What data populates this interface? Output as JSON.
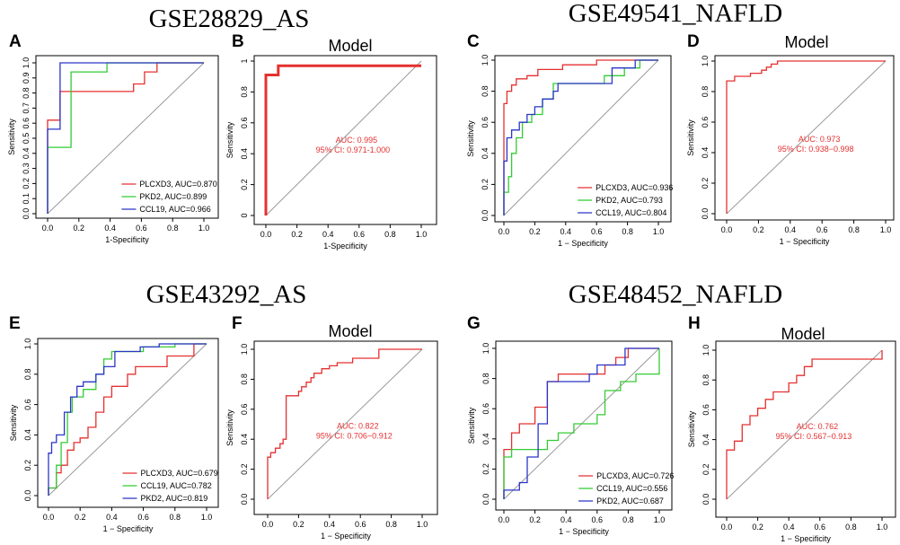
{
  "colors": {
    "red": "#e53030",
    "green": "#33cc33",
    "blue": "#2a36c8",
    "diagonal": "#9a9a9a"
  },
  "group_titles": [
    "GSE28829_AS",
    "GSE49541_NAFLD",
    "GSE43292_AS",
    "GSE48452_NAFLD"
  ],
  "chart_data": [
    {
      "panel": "A",
      "type": "line",
      "title": "",
      "xlabel": "1-Specificity",
      "ylabel": "Sensitivity",
      "xlim": [
        0,
        1
      ],
      "ylim": [
        0,
        1
      ],
      "xticks": [
        "0.0",
        "0.2",
        "0.4",
        "0.6",
        "0.8",
        "1.0"
      ],
      "yticks": [
        "0.0",
        "0.1",
        "0.2",
        "0.3",
        "0.4",
        "0.5",
        "0.6",
        "0.7",
        "0.8",
        "0.9",
        "1.0"
      ],
      "legend": "bottom-right",
      "series": [
        {
          "name": "PLCXD3, AUC=0.870",
          "color": "red",
          "x": [
            0,
            0,
            0.08,
            0.08,
            0.55,
            0.55,
            0.62,
            0.62,
            0.7,
            0.7,
            1.0
          ],
          "y": [
            0,
            0.62,
            0.62,
            0.81,
            0.81,
            0.86,
            0.86,
            0.94,
            0.94,
            1.0,
            1.0
          ]
        },
        {
          "name": "PKD2, AUC=0.899",
          "color": "green",
          "x": [
            0,
            0,
            0.15,
            0.15,
            0.38,
            0.38,
            1.0
          ],
          "y": [
            0,
            0.44,
            0.44,
            0.94,
            0.94,
            1.0,
            1.0
          ]
        },
        {
          "name": "CCL19, AUC=0.966",
          "color": "blue",
          "x": [
            0,
            0,
            0.08,
            0.08,
            1.0
          ],
          "y": [
            0,
            0.56,
            0.56,
            1.0,
            1.0
          ]
        }
      ]
    },
    {
      "panel": "B",
      "type": "line",
      "title": "Model",
      "xlabel": "1-Specificity",
      "ylabel": "Sensitivity",
      "xlim": [
        0,
        1
      ],
      "ylim": [
        0,
        1
      ],
      "xticks": [
        "0.0",
        "0.2",
        "0.4",
        "0.6",
        "0.8",
        "1.0"
      ],
      "yticks": [
        "0",
        "0.2",
        "0.4",
        "0.6",
        "0.8",
        "1"
      ],
      "auc_text": "AUC: 0.995",
      "ci_text": "95% CI: 0.971-1.000",
      "series": [
        {
          "name": "Model",
          "color": "red",
          "thick": true,
          "x": [
            0,
            0,
            0.08,
            0.08,
            1.0
          ],
          "y": [
            0,
            0.91,
            0.91,
            0.97,
            0.97
          ]
        }
      ]
    },
    {
      "panel": "C",
      "type": "line",
      "title": "",
      "xlabel": "1 − Specificity",
      "ylabel": "Sensitivity",
      "xlim": [
        0,
        1
      ],
      "ylim": [
        0,
        1
      ],
      "xticks": [
        "0.0",
        "0.2",
        "0.4",
        "0.6",
        "0.8",
        "1.0"
      ],
      "yticks": [
        "0.0",
        "0.2",
        "0.4",
        "0.6",
        "0.8",
        "1.0"
      ],
      "legend": "bottom-right",
      "series": [
        {
          "name": "PLCXD3, AUC=0.936",
          "color": "red",
          "x": [
            0,
            0,
            0.02,
            0.02,
            0.05,
            0.05,
            0.08,
            0.08,
            0.15,
            0.15,
            0.22,
            0.22,
            0.38,
            0.38,
            0.6,
            0.6,
            1.0
          ],
          "y": [
            0,
            0.72,
            0.72,
            0.8,
            0.8,
            0.84,
            0.84,
            0.88,
            0.88,
            0.9,
            0.9,
            0.94,
            0.94,
            0.97,
            0.97,
            1.0,
            1.0
          ]
        },
        {
          "name": "PKD2, AUC=0.793",
          "color": "green",
          "x": [
            0,
            0,
            0.03,
            0.03,
            0.05,
            0.05,
            0.08,
            0.08,
            0.12,
            0.12,
            0.18,
            0.18,
            0.25,
            0.25,
            0.32,
            0.32,
            0.65,
            0.65,
            0.78,
            0.78,
            0.88,
            0.88,
            1.0
          ],
          "y": [
            0,
            0.15,
            0.15,
            0.25,
            0.25,
            0.4,
            0.4,
            0.5,
            0.5,
            0.6,
            0.6,
            0.65,
            0.65,
            0.75,
            0.75,
            0.85,
            0.85,
            0.9,
            0.9,
            0.95,
            0.95,
            1.0,
            1.0
          ]
        },
        {
          "name": "CCL19, AUC=0.804",
          "color": "blue",
          "x": [
            0,
            0,
            0.02,
            0.02,
            0.05,
            0.05,
            0.1,
            0.1,
            0.15,
            0.15,
            0.2,
            0.2,
            0.25,
            0.25,
            0.32,
            0.32,
            0.35,
            0.35,
            0.7,
            0.7,
            0.85,
            0.85,
            1.0
          ],
          "y": [
            0,
            0.35,
            0.35,
            0.5,
            0.5,
            0.55,
            0.55,
            0.6,
            0.6,
            0.65,
            0.65,
            0.7,
            0.7,
            0.75,
            0.75,
            0.8,
            0.8,
            0.85,
            0.85,
            0.95,
            0.95,
            1.0,
            1.0
          ]
        }
      ]
    },
    {
      "panel": "D",
      "type": "line",
      "title": "Model",
      "xlabel": "1 − Specificity",
      "ylabel": "Sensitivity",
      "xlim": [
        0,
        1
      ],
      "ylim": [
        0,
        1
      ],
      "xticks": [
        "0.0",
        "0.2",
        "0.4",
        "0.6",
        "0.8",
        "1.0"
      ],
      "yticks": [
        "0.0",
        "0.2",
        "0.4",
        "0.6",
        "0.8",
        "1.0"
      ],
      "auc_text": "AUC: 0.973",
      "ci_text": "95% CI: 0.938−0.998",
      "series": [
        {
          "name": "Model",
          "color": "red",
          "x": [
            0,
            0,
            0.05,
            0.05,
            0.15,
            0.15,
            0.22,
            0.22,
            0.25,
            0.25,
            0.28,
            0.28,
            0.32,
            0.32,
            1.0
          ],
          "y": [
            0,
            0.87,
            0.87,
            0.9,
            0.9,
            0.92,
            0.92,
            0.94,
            0.94,
            0.96,
            0.96,
            0.98,
            0.98,
            1.0,
            1.0
          ]
        }
      ]
    },
    {
      "panel": "E",
      "type": "line",
      "title": "",
      "xlabel": "1 − Specificity",
      "ylabel": "Sensitivity",
      "xlim": [
        0,
        1
      ],
      "ylim": [
        0,
        1
      ],
      "xticks": [
        "0.0",
        "0.2",
        "0.4",
        "0.6",
        "0.8",
        "1.0"
      ],
      "yticks": [
        "0.0",
        "0.2",
        "0.4",
        "0.6",
        "0.8",
        "1.0"
      ],
      "legend": "bottom-right",
      "series": [
        {
          "name": "PLCXD3, AUC=0.679",
          "color": "red",
          "x": [
            0,
            0,
            0.05,
            0.05,
            0.08,
            0.08,
            0.12,
            0.12,
            0.16,
            0.16,
            0.2,
            0.2,
            0.25,
            0.25,
            0.3,
            0.3,
            0.35,
            0.35,
            0.4,
            0.4,
            0.5,
            0.5,
            0.55,
            0.55,
            0.75,
            0.75,
            0.92,
            0.92,
            1.0
          ],
          "y": [
            0,
            0.05,
            0.05,
            0.15,
            0.15,
            0.2,
            0.2,
            0.3,
            0.3,
            0.35,
            0.35,
            0.38,
            0.38,
            0.45,
            0.45,
            0.55,
            0.55,
            0.65,
            0.65,
            0.72,
            0.72,
            0.8,
            0.8,
            0.85,
            0.85,
            0.92,
            0.92,
            1.0,
            1.0
          ]
        },
        {
          "name": "CCL19, AUC=0.782",
          "color": "green",
          "x": [
            0,
            0,
            0.05,
            0.05,
            0.08,
            0.08,
            0.12,
            0.12,
            0.15,
            0.15,
            0.22,
            0.22,
            0.3,
            0.3,
            0.35,
            0.35,
            0.4,
            0.4,
            0.6,
            0.6,
            0.8,
            0.8,
            1.0
          ],
          "y": [
            0,
            0.05,
            0.05,
            0.2,
            0.2,
            0.35,
            0.35,
            0.55,
            0.55,
            0.65,
            0.65,
            0.7,
            0.7,
            0.8,
            0.8,
            0.9,
            0.9,
            0.95,
            0.95,
            0.98,
            0.98,
            1.0,
            1.0
          ]
        },
        {
          "name": "PKD2, AUC=0.819",
          "color": "blue",
          "x": [
            0,
            0,
            0.02,
            0.02,
            0.05,
            0.05,
            0.1,
            0.1,
            0.14,
            0.14,
            0.18,
            0.18,
            0.22,
            0.22,
            0.3,
            0.3,
            0.35,
            0.35,
            0.42,
            0.42,
            0.58,
            0.58,
            0.7,
            0.7,
            1.0
          ],
          "y": [
            0,
            0.28,
            0.28,
            0.35,
            0.35,
            0.4,
            0.4,
            0.55,
            0.55,
            0.65,
            0.65,
            0.72,
            0.72,
            0.75,
            0.75,
            0.8,
            0.8,
            0.85,
            0.85,
            0.95,
            0.95,
            0.98,
            0.98,
            1.0,
            1.0
          ]
        }
      ]
    },
    {
      "panel": "F",
      "type": "line",
      "title": "Model",
      "xlabel": "1 − Specificity",
      "ylabel": "Sensitivity",
      "xlim": [
        0,
        1
      ],
      "ylim": [
        0,
        1
      ],
      "xticks": [
        "0.0",
        "0.2",
        "0.4",
        "0.6",
        "0.8",
        "1.0"
      ],
      "yticks": [
        "0.0",
        "0.2",
        "0.4",
        "0.6",
        "0.8",
        "1.0"
      ],
      "auc_text": "AUC: 0.822",
      "ci_text": "95% CI: 0.706−0.912",
      "series": [
        {
          "name": "Model",
          "color": "red",
          "x": [
            0,
            0,
            0.02,
            0.02,
            0.05,
            0.05,
            0.08,
            0.08,
            0.1,
            0.1,
            0.12,
            0.12,
            0.2,
            0.2,
            0.22,
            0.22,
            0.25,
            0.25,
            0.28,
            0.28,
            0.3,
            0.3,
            0.35,
            0.35,
            0.4,
            0.4,
            0.45,
            0.45,
            0.55,
            0.55,
            0.72,
            0.72,
            1.0
          ],
          "y": [
            0,
            0.28,
            0.28,
            0.31,
            0.31,
            0.34,
            0.34,
            0.37,
            0.37,
            0.4,
            0.4,
            0.69,
            0.69,
            0.72,
            0.72,
            0.75,
            0.75,
            0.78,
            0.78,
            0.81,
            0.81,
            0.84,
            0.84,
            0.87,
            0.87,
            0.89,
            0.89,
            0.91,
            0.91,
            0.94,
            0.94,
            1.0,
            1.0
          ]
        }
      ]
    },
    {
      "panel": "G",
      "type": "line",
      "title": "",
      "xlabel": "1 − Specificity",
      "ylabel": "Sensitivity",
      "xlim": [
        0,
        1
      ],
      "ylim": [
        0,
        1
      ],
      "xticks": [
        "0.0",
        "0.2",
        "0.4",
        "0.6",
        "0.8",
        "1.0"
      ],
      "yticks": [
        "0.0",
        "0.2",
        "0.4",
        "0.6",
        "0.8",
        "1.0"
      ],
      "legend": "bottom-right",
      "series": [
        {
          "name": "PLCXD3, AUC=0.726",
          "color": "red",
          "x": [
            0,
            0,
            0.05,
            0.05,
            0.1,
            0.1,
            0.2,
            0.2,
            0.28,
            0.28,
            0.35,
            0.35,
            0.65,
            0.65,
            0.72,
            0.72,
            0.8,
            0.8,
            1.0
          ],
          "y": [
            0,
            0.33,
            0.33,
            0.44,
            0.44,
            0.5,
            0.5,
            0.61,
            0.61,
            0.78,
            0.78,
            0.83,
            0.83,
            0.89,
            0.89,
            0.94,
            0.94,
            1.0,
            1.0
          ]
        },
        {
          "name": "CCL19, AUC=0.556",
          "color": "green",
          "x": [
            0,
            0,
            0.05,
            0.05,
            0.28,
            0.28,
            0.35,
            0.35,
            0.45,
            0.45,
            0.6,
            0.6,
            0.65,
            0.65,
            0.75,
            0.75,
            0.85,
            0.85,
            1.0,
            1.0
          ],
          "y": [
            0,
            0.28,
            0.28,
            0.33,
            0.33,
            0.39,
            0.39,
            0.44,
            0.44,
            0.5,
            0.5,
            0.56,
            0.56,
            0.72,
            0.72,
            0.78,
            0.78,
            0.83,
            0.83,
            1.0
          ]
        },
        {
          "name": "PKD2, AUC=0.687",
          "color": "blue",
          "x": [
            0,
            0,
            0.1,
            0.1,
            0.15,
            0.15,
            0.22,
            0.22,
            0.28,
            0.28,
            0.55,
            0.55,
            0.6,
            0.6,
            0.78,
            0.78,
            1.0
          ],
          "y": [
            0,
            0.06,
            0.06,
            0.11,
            0.11,
            0.28,
            0.28,
            0.5,
            0.5,
            0.78,
            0.78,
            0.83,
            0.83,
            0.89,
            0.89,
            1.0,
            1.0
          ]
        }
      ]
    },
    {
      "panel": "H",
      "type": "line",
      "title": "Model",
      "xlabel": "1 − Specificity",
      "ylabel": "Sensitivity",
      "xlim": [
        0,
        1
      ],
      "ylim": [
        0,
        1
      ],
      "xticks": [
        "0.0",
        "0.2",
        "0.4",
        "0.6",
        "0.8",
        "1.0"
      ],
      "yticks": [
        "0.0",
        "0.2",
        "0.4",
        "0.6",
        "0.8",
        "1.0"
      ],
      "auc_text": "AUC: 0.762",
      "ci_text": "95% CI: 0.567−0.913",
      "series": [
        {
          "name": "Model",
          "color": "red",
          "x": [
            0,
            0,
            0.05,
            0.05,
            0.1,
            0.1,
            0.15,
            0.15,
            0.2,
            0.2,
            0.25,
            0.25,
            0.3,
            0.3,
            0.4,
            0.4,
            0.45,
            0.45,
            0.5,
            0.5,
            0.55,
            0.55,
            1.0,
            1.0
          ],
          "y": [
            0,
            0.33,
            0.33,
            0.39,
            0.39,
            0.5,
            0.5,
            0.56,
            0.56,
            0.61,
            0.61,
            0.67,
            0.67,
            0.72,
            0.72,
            0.78,
            0.78,
            0.83,
            0.83,
            0.89,
            0.89,
            0.94,
            0.94,
            1.0
          ]
        }
      ]
    }
  ]
}
